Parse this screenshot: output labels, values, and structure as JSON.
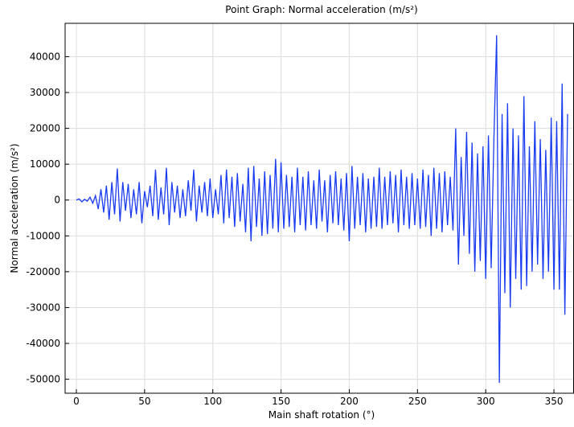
{
  "chart_data": {
    "type": "line",
    "title": "Point Graph: Normal acceleration (m/s²)",
    "x_label": "Main shaft rotation (°)",
    "y_label": "Normal acceleration (m/s²)",
    "xlim": [
      -8.25,
      364.7
    ],
    "ylim": [
      -53900,
      49300
    ],
    "xticks": [
      0,
      50,
      100,
      150,
      200,
      250,
      300,
      350
    ],
    "yticks": [
      -50000,
      -40000,
      -30000,
      -20000,
      -10000,
      0,
      10000,
      20000,
      30000,
      40000
    ],
    "grid": true,
    "x": [
      0,
      2,
      4,
      6,
      8,
      10,
      12,
      14,
      16,
      18,
      20,
      22,
      24,
      26,
      28,
      30,
      32,
      34,
      36,
      38,
      40,
      42,
      44,
      46,
      48,
      50,
      52,
      54,
      56,
      58,
      60,
      62,
      64,
      66,
      68,
      70,
      72,
      74,
      76,
      78,
      80,
      82,
      84,
      86,
      88,
      90,
      92,
      94,
      96,
      98,
      100,
      102,
      104,
      106,
      108,
      110,
      112,
      114,
      116,
      118,
      120,
      122,
      124,
      126,
      128,
      130,
      132,
      134,
      136,
      138,
      140,
      142,
      144,
      146,
      148,
      150,
      152,
      154,
      156,
      158,
      160,
      162,
      164,
      166,
      168,
      170,
      172,
      174,
      176,
      178,
      180,
      182,
      184,
      186,
      188,
      190,
      192,
      194,
      196,
      198,
      200,
      202,
      204,
      206,
      208,
      210,
      212,
      214,
      216,
      218,
      220,
      222,
      224,
      226,
      228,
      230,
      232,
      234,
      236,
      238,
      240,
      242,
      244,
      246,
      248,
      250,
      252,
      254,
      256,
      258,
      260,
      262,
      264,
      266,
      268,
      270,
      272,
      274,
      276,
      278,
      280,
      282,
      284,
      286,
      288,
      290,
      292,
      294,
      296,
      298,
      300,
      302,
      304,
      306,
      308,
      310,
      312,
      314,
      316,
      318,
      320,
      322,
      324,
      326,
      328,
      330,
      332,
      334,
      336,
      338,
      340,
      342,
      344,
      346,
      348,
      350,
      352,
      354,
      356,
      358,
      360
    ],
    "series": [
      {
        "color": "#1a3cf0",
        "values": [
          0,
          300,
          -500,
          200,
          -300,
          800,
          -900,
          1200,
          -2500,
          3000,
          -3500,
          4000,
          -5500,
          5000,
          -4000,
          8800,
          -6000,
          5000,
          -3000,
          4500,
          -5000,
          3000,
          -4000,
          5000,
          -6500,
          2500,
          -2000,
          4000,
          -4500,
          8500,
          -5500,
          3500,
          -4000,
          9000,
          -7000,
          5000,
          -3500,
          4000,
          -5000,
          3000,
          -4500,
          5500,
          -3000,
          8500,
          -6000,
          4000,
          -3500,
          5000,
          -4500,
          6000,
          -5000,
          3000,
          -4000,
          7000,
          -6500,
          8500,
          -5000,
          6500,
          -7500,
          7500,
          -6000,
          4500,
          -9000,
          9000,
          -11500,
          9500,
          -7500,
          6000,
          -10000,
          8000,
          -9500,
          7000,
          -8000,
          11500,
          -9000,
          10500,
          -8000,
          7000,
          -7500,
          6500,
          -9000,
          9000,
          -7000,
          6500,
          -8500,
          8000,
          -7000,
          5500,
          -8000,
          8500,
          -6000,
          5500,
          -9000,
          7000,
          -6500,
          8000,
          -7000,
          6000,
          -8500,
          7500,
          -11500,
          9500,
          -8000,
          6500,
          -7000,
          7500,
          -9000,
          6000,
          -8000,
          6500,
          -7500,
          9000,
          -8000,
          6500,
          -7000,
          8000,
          -6500,
          7000,
          -9000,
          8500,
          -7000,
          6500,
          -8000,
          7500,
          -7000,
          6000,
          -8000,
          8500,
          -7500,
          7000,
          -10000,
          9000,
          -8000,
          7500,
          -9000,
          8000,
          -7000,
          6500,
          -8500,
          20000,
          -18000,
          12000,
          -10000,
          19000,
          -15000,
          16000,
          -20000,
          13000,
          -17000,
          15000,
          -22000,
          18000,
          -19000,
          17000,
          46000,
          -51000,
          24000,
          -26000,
          27000,
          -30000,
          20000,
          -22000,
          18000,
          -25000,
          29000,
          -24000,
          15000,
          -20000,
          22000,
          -18000,
          17000,
          -22000,
          14000,
          -20000,
          23000,
          -25000,
          22000,
          -25000,
          32500,
          -32000,
          24000
        ]
      }
    ]
  }
}
